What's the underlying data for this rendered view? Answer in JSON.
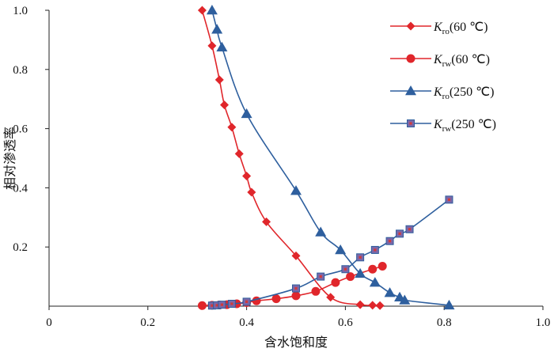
{
  "chart_data": {
    "type": "line",
    "xlabel": "含水饱和度",
    "ylabel": "相对渗透率",
    "xlim": [
      0,
      1.0
    ],
    "ylim": [
      0,
      1.0
    ],
    "x_ticks": [
      "0",
      "0.2",
      "0.4",
      "0.6",
      "0.8",
      "1.0"
    ],
    "y_ticks": [
      "0.2",
      "0.4",
      "0.6",
      "0.8",
      "1.0"
    ],
    "grid": false,
    "legend_position": "top-right",
    "series": [
      {
        "name": "Kro(60 ℃)",
        "legend_main": "K",
        "legend_sub": "ro",
        "legend_rest": "(60 ℃)",
        "color": "#e0262b",
        "marker": "diamond",
        "points": [
          [
            0.31,
            1.0
          ],
          [
            0.33,
            0.88
          ],
          [
            0.345,
            0.765
          ],
          [
            0.355,
            0.68
          ],
          [
            0.37,
            0.605
          ],
          [
            0.385,
            0.515
          ],
          [
            0.4,
            0.44
          ],
          [
            0.41,
            0.385
          ],
          [
            0.44,
            0.285
          ],
          [
            0.5,
            0.17
          ],
          [
            0.57,
            0.03
          ],
          [
            0.63,
            0.005
          ],
          [
            0.655,
            0.003
          ],
          [
            0.67,
            0.002
          ]
        ]
      },
      {
        "name": "Krw(60 ℃)",
        "legend_main": "K",
        "legend_sub": "rw",
        "legend_rest": "(60 ℃)",
        "color": "#e0262b",
        "marker": "circle",
        "points": [
          [
            0.31,
            0.002
          ],
          [
            0.33,
            0.003
          ],
          [
            0.345,
            0.004
          ],
          [
            0.36,
            0.005
          ],
          [
            0.38,
            0.008
          ],
          [
            0.4,
            0.012
          ],
          [
            0.42,
            0.018
          ],
          [
            0.46,
            0.025
          ],
          [
            0.5,
            0.035
          ],
          [
            0.54,
            0.05
          ],
          [
            0.58,
            0.08
          ],
          [
            0.61,
            0.1
          ],
          [
            0.655,
            0.125
          ],
          [
            0.675,
            0.135
          ]
        ]
      },
      {
        "name": "Kro(250 ℃)",
        "legend_main": "K",
        "legend_sub": "ro",
        "legend_rest": "(250 ℃)",
        "color": "#2e5f9e",
        "marker": "triangle",
        "points": [
          [
            0.33,
            1.0
          ],
          [
            0.34,
            0.935
          ],
          [
            0.35,
            0.875
          ],
          [
            0.4,
            0.65
          ],
          [
            0.5,
            0.39
          ],
          [
            0.55,
            0.25
          ],
          [
            0.59,
            0.19
          ],
          [
            0.63,
            0.11
          ],
          [
            0.66,
            0.08
          ],
          [
            0.69,
            0.045
          ],
          [
            0.71,
            0.03
          ],
          [
            0.72,
            0.02
          ],
          [
            0.81,
            0.003
          ]
        ]
      },
      {
        "name": "Krw(250 ℃)",
        "legend_main": "K",
        "legend_sub": "rw",
        "legend_rest": "(250 ℃)",
        "color": "#2e5f9e",
        "marker": "square",
        "points": [
          [
            0.33,
            0.002
          ],
          [
            0.34,
            0.003
          ],
          [
            0.35,
            0.005
          ],
          [
            0.37,
            0.008
          ],
          [
            0.4,
            0.015
          ],
          [
            0.5,
            0.06
          ],
          [
            0.55,
            0.1
          ],
          [
            0.6,
            0.125
          ],
          [
            0.63,
            0.165
          ],
          [
            0.66,
            0.19
          ],
          [
            0.69,
            0.22
          ],
          [
            0.71,
            0.245
          ],
          [
            0.73,
            0.26
          ],
          [
            0.81,
            0.36
          ]
        ]
      }
    ]
  }
}
